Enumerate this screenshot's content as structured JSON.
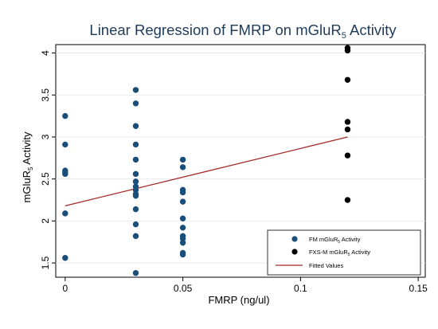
{
  "chart_data": {
    "type": "scatter",
    "title": {
      "prefix": "Linear Regression of FMRP on mGluR",
      "subscript": "5",
      "suffix": " Activity"
    },
    "xlabel": "FMRP (ng/ul)",
    "ylabel": {
      "prefix": "mGluR",
      "subscript": "5",
      "suffix": " Activity"
    },
    "xlim": [
      -0.004,
      0.153
    ],
    "ylim": [
      1.33,
      4.1
    ],
    "x_ticks": [
      {
        "value": 0,
        "label": "0"
      },
      {
        "value": 0.05,
        "label": "0.05"
      },
      {
        "value": 0.1,
        "label": "0.1"
      },
      {
        "value": 0.15,
        "label": "0.15"
      }
    ],
    "y_ticks": [
      {
        "value": 1.5,
        "label": "1.5"
      },
      {
        "value": 2,
        "label": "2"
      },
      {
        "value": 2.5,
        "label": "2.5"
      },
      {
        "value": 3,
        "label": "3"
      },
      {
        "value": 3.5,
        "label": "3.5"
      },
      {
        "value": 4,
        "label": "4"
      }
    ],
    "grid": "horizontal",
    "legend_position": "bottom-right",
    "series": [
      {
        "name": {
          "prefix": "FM mGluR",
          "subscript": "5",
          "suffix": " Activity"
        },
        "color": "#1a4e7a",
        "kind": "scatter",
        "points": [
          [
            0,
            3.25
          ],
          [
            0,
            2.91
          ],
          [
            0,
            2.6
          ],
          [
            0,
            2.58
          ],
          [
            0,
            2.56
          ],
          [
            0,
            2.09
          ],
          [
            0,
            1.56
          ],
          [
            0.03,
            3.56
          ],
          [
            0.03,
            3.4
          ],
          [
            0.03,
            3.13
          ],
          [
            0.03,
            2.91
          ],
          [
            0.03,
            2.73
          ],
          [
            0.03,
            2.56
          ],
          [
            0.03,
            2.47
          ],
          [
            0.03,
            2.41
          ],
          [
            0.03,
            2.37
          ],
          [
            0.03,
            2.32
          ],
          [
            0.03,
            2.3
          ],
          [
            0.03,
            2.14
          ],
          [
            0.03,
            1.96
          ],
          [
            0.03,
            1.82
          ],
          [
            0.03,
            1.38
          ],
          [
            0.05,
            2.73
          ],
          [
            0.05,
            2.64
          ],
          [
            0.05,
            2.37
          ],
          [
            0.05,
            2.34
          ],
          [
            0.05,
            2.23
          ],
          [
            0.05,
            2.03
          ],
          [
            0.05,
            1.92
          ],
          [
            0.05,
            1.82
          ],
          [
            0.05,
            1.79
          ],
          [
            0.05,
            1.74
          ],
          [
            0.05,
            1.62
          ],
          [
            0.05,
            1.6
          ]
        ]
      },
      {
        "name": {
          "prefix": "FXS-M mGluR",
          "subscript": "5",
          "suffix": " Activity"
        },
        "color": "#000000",
        "kind": "scatter",
        "points": [
          [
            0.12,
            4.06
          ],
          [
            0.12,
            4.03
          ],
          [
            0.12,
            3.68
          ],
          [
            0.12,
            3.18
          ],
          [
            0.12,
            3.09
          ],
          [
            0.12,
            2.78
          ],
          [
            0.12,
            2.25
          ]
        ]
      },
      {
        "name": {
          "prefix": "Fitted Values",
          "subscript": "",
          "suffix": ""
        },
        "color": "#a52a2a",
        "kind": "line",
        "points": [
          [
            0,
            2.18
          ],
          [
            0.12,
            3.0
          ]
        ]
      }
    ]
  }
}
